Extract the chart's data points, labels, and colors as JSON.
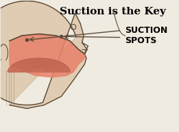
{
  "title": "Suction is the Key",
  "label_suction": "SUCTION\nSPOTS",
  "bg_color": "#f0ebe0",
  "salmon_color": "#e8816a",
  "sketch_color": "#5a4a3a",
  "skin_color": "#d4b896",
  "tongue_color": "#c96b55",
  "tongue_line_color": "#a05040",
  "title_fontsize": 11,
  "label_fontsize": 9,
  "fig_width": 2.61,
  "fig_height": 1.93,
  "dpi": 100
}
